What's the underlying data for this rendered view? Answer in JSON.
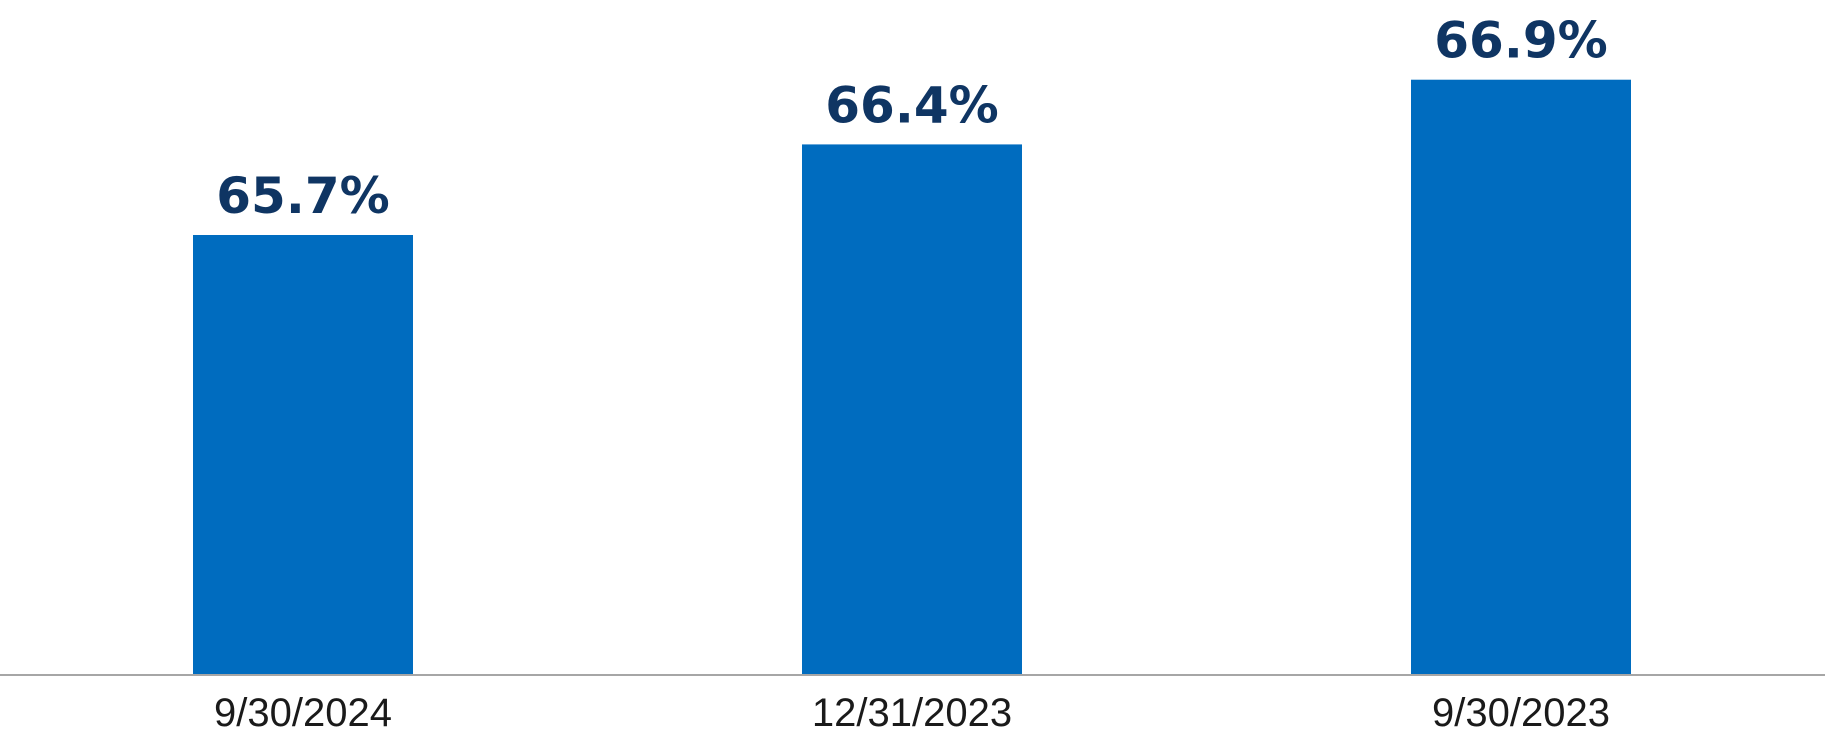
{
  "chart_data": {
    "type": "bar",
    "categories": [
      "9/30/2024",
      "12/31/2023",
      "9/30/2023"
    ],
    "values": [
      65.7,
      66.4,
      66.9
    ],
    "data_labels": [
      "65.7%",
      "66.4%",
      "66.9%"
    ],
    "y_unit": "%",
    "ylim": [
      62.3,
      67.4
    ],
    "title": "",
    "xlabel": "",
    "ylabel": "",
    "y_axis_visible": false,
    "grid": false,
    "legend": "none"
  },
  "colors": {
    "bar": "#006cbf",
    "value_label": "#0f3563",
    "tick_label": "#1a1a1a",
    "axis_line": "#a6a6a6",
    "background": "#ffffff"
  }
}
